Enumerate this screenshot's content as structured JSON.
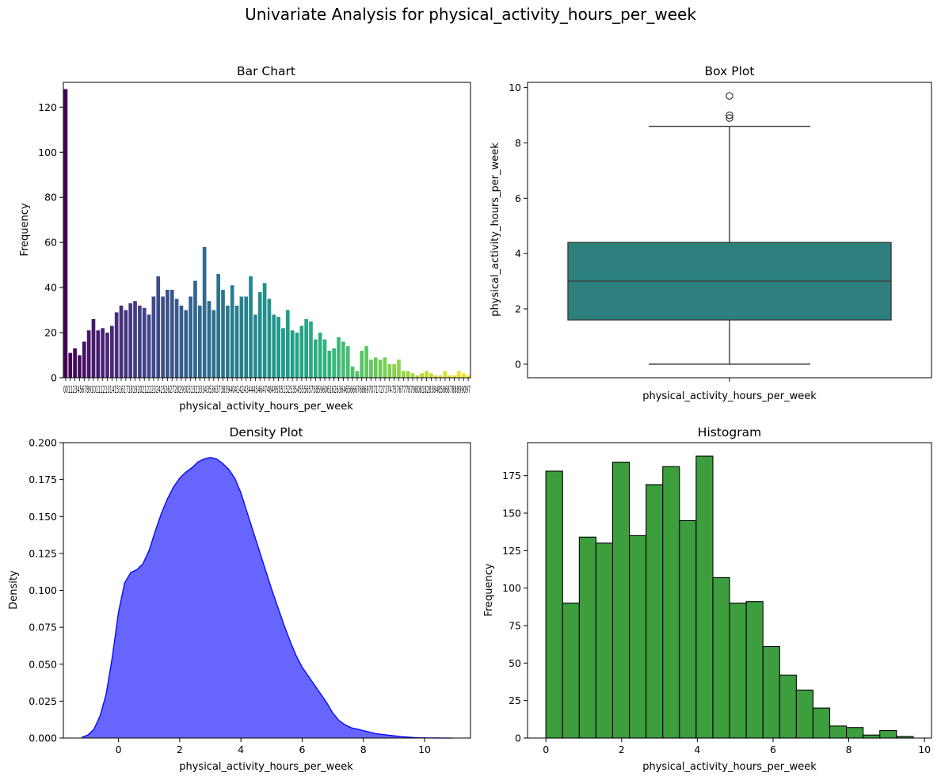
{
  "figure": {
    "suptitle": "Univariate Analysis for physical_activity_hours_per_week"
  },
  "chart_data": [
    {
      "type": "bar",
      "title": "Bar Chart",
      "xlabel": "physical_activity_hours_per_week",
      "ylabel": "Frequency",
      "ylim": [
        0,
        131
      ],
      "yticks": [
        0,
        20,
        40,
        60,
        80,
        100,
        120
      ],
      "grid": false,
      "palette": "viridis",
      "x_tick_labels_overlapping": "00112345678910111213141516171819202122232425262728293031323334353637383940414243444546474849505152535455565758596061626364656667686970717273747576777879808182838485868788899097",
      "values": [
        128,
        11,
        13,
        10,
        16,
        21,
        26,
        21,
        22,
        20,
        23,
        29,
        32,
        30,
        33,
        34,
        32,
        31,
        28,
        36,
        45,
        36,
        39,
        39,
        35,
        32,
        30,
        36,
        43,
        32,
        58,
        34,
        30,
        46,
        39,
        32,
        41,
        32,
        36,
        36,
        45,
        28,
        38,
        42,
        35,
        28,
        27,
        22,
        30,
        21,
        20,
        23,
        26,
        25,
        17,
        20,
        17,
        12,
        13,
        18,
        16,
        14,
        5,
        3,
        12,
        14,
        8,
        9,
        8,
        9,
        6,
        6,
        8,
        3,
        3,
        2,
        1,
        2,
        3,
        2,
        1,
        1,
        3,
        1,
        1,
        3,
        2,
        1
      ]
    },
    {
      "type": "box",
      "title": "Box Plot",
      "xlabel": "physical_activity_hours_per_week",
      "ylabel": "physical_activity_hours_per_week",
      "ylim": [
        -0.49,
        10.19
      ],
      "yticks": [
        0,
        2,
        4,
        6,
        8,
        10
      ],
      "color": "#2e807e",
      "min": 0.0,
      "q1": 1.6,
      "median": 3.0,
      "q3": 4.4,
      "max": 8.6,
      "outliers": [
        8.9,
        9.0,
        9.7
      ]
    },
    {
      "type": "area",
      "title": "Density Plot",
      "xlabel": "physical_activity_hours_per_week",
      "ylabel": "Density",
      "xlim": [
        -1.8,
        11.5
      ],
      "ylim": [
        0,
        0.2
      ],
      "xticks": [
        0,
        2,
        4,
        6,
        8,
        10
      ],
      "yticks": [
        "0.000",
        "0.025",
        "0.050",
        "0.075",
        "0.100",
        "0.125",
        "0.150",
        "0.175",
        "0.200"
      ],
      "fill_color": "#6666ff",
      "line_color": "#0000ff",
      "x": [
        -1.2,
        -1.0,
        -0.8,
        -0.6,
        -0.4,
        -0.2,
        0.0,
        0.2,
        0.4,
        0.6,
        0.8,
        1.0,
        1.2,
        1.4,
        1.6,
        1.8,
        2.0,
        2.2,
        2.4,
        2.6,
        2.8,
        3.0,
        3.2,
        3.4,
        3.6,
        3.8,
        4.0,
        4.2,
        4.4,
        4.6,
        4.8,
        5.0,
        5.2,
        5.4,
        5.6,
        5.8,
        6.0,
        6.2,
        6.4,
        6.6,
        6.8,
        7.0,
        7.2,
        7.4,
        7.6,
        7.8,
        8.0,
        8.2,
        8.4,
        8.6,
        8.8,
        9.0,
        9.2,
        9.4,
        9.6,
        9.8,
        10.0,
        10.2,
        10.4,
        10.6,
        10.8,
        10.9
      ],
      "y": [
        0.0005,
        0.002,
        0.006,
        0.015,
        0.03,
        0.055,
        0.085,
        0.105,
        0.112,
        0.114,
        0.118,
        0.127,
        0.14,
        0.152,
        0.162,
        0.17,
        0.176,
        0.18,
        0.183,
        0.187,
        0.189,
        0.19,
        0.189,
        0.186,
        0.182,
        0.176,
        0.166,
        0.153,
        0.14,
        0.127,
        0.114,
        0.101,
        0.089,
        0.077,
        0.066,
        0.056,
        0.048,
        0.042,
        0.036,
        0.03,
        0.024,
        0.017,
        0.012,
        0.009,
        0.007,
        0.006,
        0.005,
        0.004,
        0.003,
        0.0025,
        0.002,
        0.0015,
        0.001,
        0.0007,
        0.0004,
        0.0002,
        0.0001,
        5e-05,
        2e-05,
        1e-05,
        0.0,
        0.0
      ]
    },
    {
      "type": "histogram",
      "title": "Histogram",
      "xlabel": "physical_activity_hours_per_week",
      "ylabel": "Frequency",
      "xlim": [
        -0.485,
        10.185
      ],
      "ylim": [
        0,
        197
      ],
      "xticks": [
        0,
        2,
        4,
        6,
        8,
        10
      ],
      "yticks": [
        0,
        25,
        50,
        75,
        100,
        125,
        150,
        175
      ],
      "color": "#3d9e3d",
      "bin_start": 0.0,
      "bin_width": 0.441,
      "counts": [
        178,
        90,
        134,
        130,
        184,
        135,
        169,
        181,
        145,
        188,
        107,
        90,
        91,
        61,
        42,
        32,
        20,
        8,
        7,
        2,
        5,
        1
      ]
    }
  ]
}
